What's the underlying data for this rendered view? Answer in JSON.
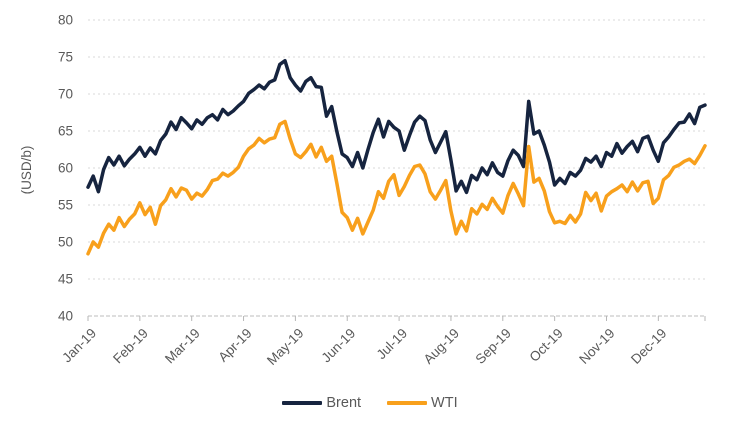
{
  "chart_data": {
    "type": "line",
    "title": "",
    "ylabel": "(USD/b)",
    "ylim": [
      40,
      80
    ],
    "yticks": [
      40,
      45,
      50,
      55,
      60,
      65,
      70,
      75,
      80
    ],
    "x_tick_labels": [
      "Jan-19",
      "Feb-19",
      "Mar-19",
      "Apr-19",
      "May-19",
      "Jun-19",
      "Jul-19",
      "Aug-19",
      "Sep-19",
      "Oct-19",
      "Nov-19",
      "Dec-19"
    ],
    "grid": "horizontal-dashed",
    "legend_position": "bottom",
    "axis_text_color": "#595959",
    "grid_color": "#d9d9d9",
    "axis_line_color": "#c9c9c9",
    "points_per_month": 10,
    "series": [
      {
        "name": "Brent",
        "color": "#16243F",
        "values": [
          57.4,
          58.9,
          56.8,
          59.8,
          61.4,
          60.4,
          61.6,
          60.3,
          61.2,
          61.9,
          62.8,
          61.6,
          62.7,
          61.9,
          63.7,
          64.6,
          66.2,
          65.2,
          66.8,
          66.1,
          65.3,
          66.5,
          65.9,
          66.8,
          67.2,
          66.5,
          67.9,
          67.2,
          67.7,
          68.4,
          69.0,
          70.1,
          70.6,
          71.2,
          70.7,
          71.6,
          71.9,
          74.0,
          74.5,
          72.2,
          71.2,
          70.4,
          71.7,
          72.2,
          71.0,
          70.9,
          67.0,
          68.3,
          64.9,
          61.9,
          61.4,
          60.2,
          62.1,
          60.0,
          62.5,
          64.8,
          66.6,
          64.2,
          66.3,
          65.5,
          65.0,
          62.4,
          64.4,
          66.2,
          67.0,
          66.4,
          63.8,
          62.1,
          63.5,
          64.9,
          61.1,
          56.9,
          58.2,
          56.7,
          59.0,
          58.4,
          60.0,
          59.1,
          60.7,
          59.4,
          58.9,
          61.0,
          62.4,
          61.7,
          60.2,
          69.0,
          64.6,
          65.0,
          63.1,
          60.8,
          57.7,
          58.6,
          57.9,
          59.4,
          58.9,
          59.7,
          61.3,
          60.8,
          61.6,
          60.2,
          62.1,
          61.6,
          63.3,
          62.0,
          62.9,
          63.6,
          62.2,
          64.0,
          64.3,
          62.4,
          60.9,
          63.4,
          64.2,
          65.2,
          66.1,
          66.2,
          67.3,
          66.0,
          68.2,
          68.5
        ]
      },
      {
        "name": "WTI",
        "color": "#F8A01C",
        "values": [
          48.4,
          50.0,
          49.3,
          51.2,
          52.4,
          51.6,
          53.3,
          52.1,
          53.1,
          53.8,
          55.3,
          53.7,
          54.7,
          52.4,
          54.9,
          55.7,
          57.2,
          56.1,
          57.3,
          57.0,
          55.8,
          56.6,
          56.2,
          57.1,
          58.3,
          58.5,
          59.3,
          58.9,
          59.4,
          60.1,
          61.6,
          62.6,
          63.1,
          64.0,
          63.4,
          63.9,
          64.1,
          65.9,
          66.3,
          63.9,
          61.9,
          61.4,
          62.2,
          63.2,
          61.5,
          62.8,
          60.9,
          61.6,
          57.9,
          54.0,
          53.3,
          51.6,
          53.2,
          51.1,
          52.7,
          54.3,
          56.8,
          55.9,
          58.2,
          59.1,
          56.3,
          57.5,
          59.0,
          60.2,
          60.4,
          59.2,
          56.8,
          55.8,
          57.0,
          58.3,
          54.2,
          51.1,
          52.8,
          51.5,
          54.5,
          53.8,
          55.1,
          54.4,
          55.9,
          54.8,
          53.9,
          56.3,
          57.9,
          56.5,
          54.9,
          62.9,
          58.1,
          58.6,
          56.9,
          54.1,
          52.6,
          52.8,
          52.5,
          53.6,
          52.7,
          53.8,
          56.7,
          55.6,
          56.6,
          54.2,
          56.2,
          56.8,
          57.2,
          57.7,
          56.8,
          58.1,
          56.9,
          58.0,
          58.2,
          55.2,
          55.9,
          58.4,
          59.0,
          60.1,
          60.4,
          60.9,
          61.2,
          60.6,
          61.7,
          63.0
        ]
      }
    ]
  }
}
